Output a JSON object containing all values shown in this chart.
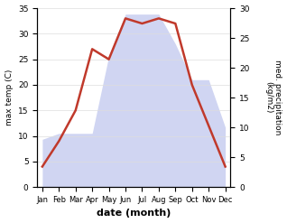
{
  "months": [
    "Jan",
    "Feb",
    "Mar",
    "Apr",
    "May",
    "Jun",
    "Jul",
    "Aug",
    "Sep",
    "Oct",
    "Nov",
    "Dec"
  ],
  "temperature": [
    4,
    9,
    15,
    27,
    25,
    33,
    32,
    33,
    32,
    20,
    12,
    4
  ],
  "precipitation": [
    8,
    9,
    9,
    9,
    22,
    29,
    29,
    29,
    24,
    18,
    18,
    10
  ],
  "temp_color": "#c0392b",
  "precip_fill_color": "#c8cef0",
  "temp_ylim": [
    0,
    35
  ],
  "precip_ylim": [
    0,
    30
  ],
  "temp_yticks": [
    0,
    5,
    10,
    15,
    20,
    25,
    30,
    35
  ],
  "precip_yticks": [
    0,
    5,
    10,
    15,
    20,
    25,
    30
  ],
  "xlabel": "date (month)",
  "ylabel_left": "max temp (C)",
  "ylabel_right": "med. precipitation\n(kg/m2)",
  "bg_color": "#ffffff",
  "line_width": 1.8,
  "fill_alpha": 0.85
}
